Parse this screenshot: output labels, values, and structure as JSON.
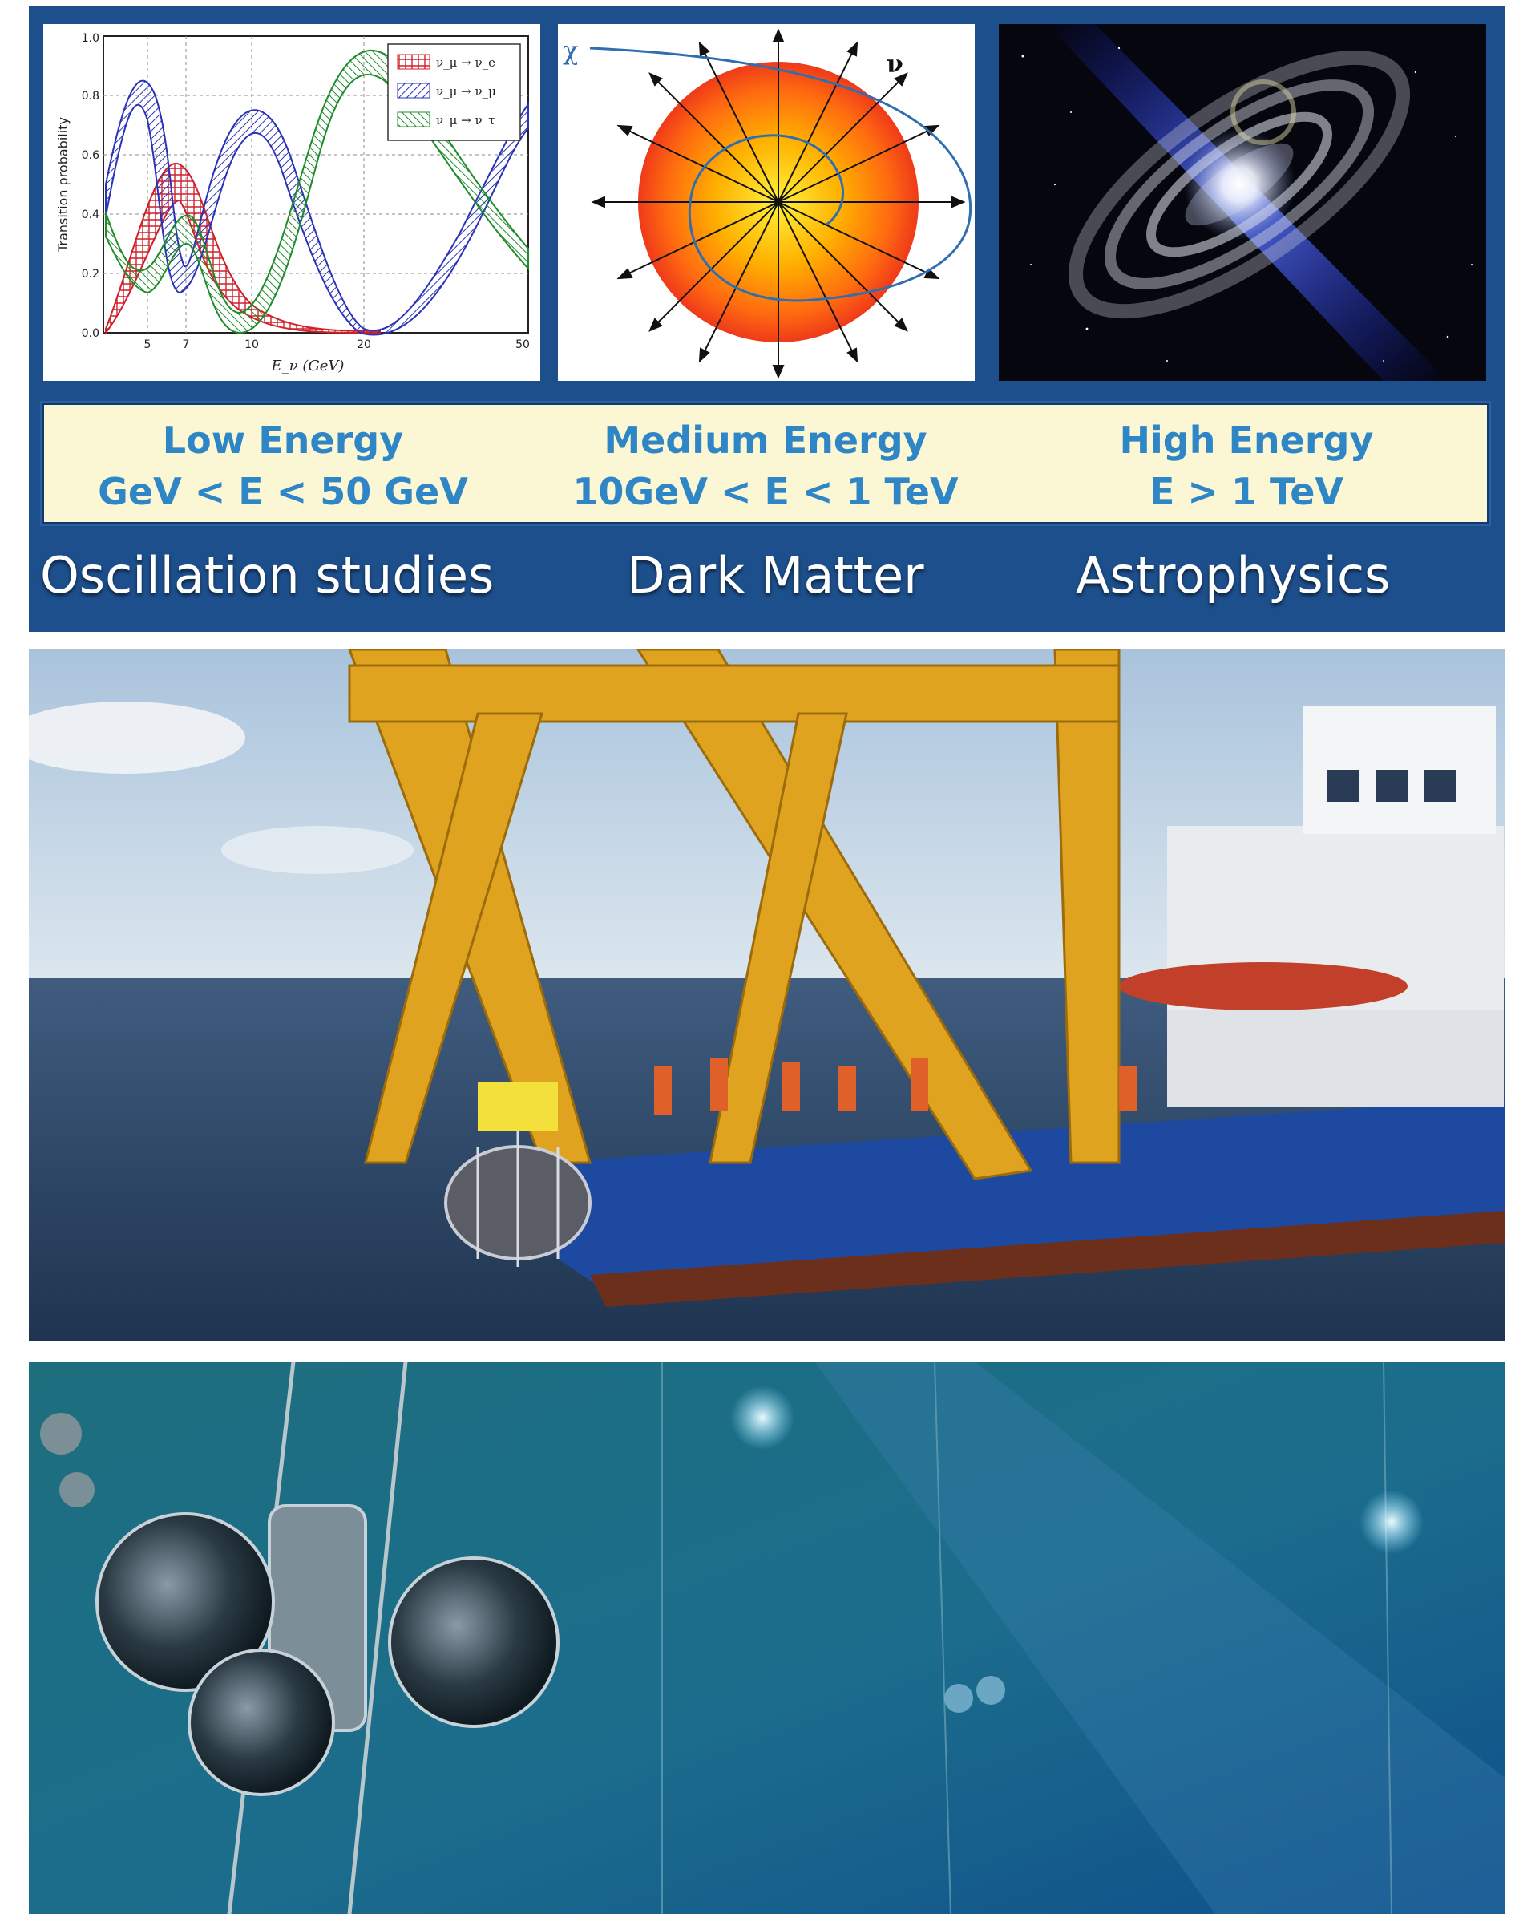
{
  "categories": [
    {
      "title": "Low Energy",
      "range": "GeV < E < 50 GeV",
      "topic": "Oscillation studies"
    },
    {
      "title": "Medium Energy",
      "range": "10GeV < E < 1 TeV",
      "topic": "Dark Matter"
    },
    {
      "title": "High Energy",
      "range": "E > 1 TeV",
      "topic": "Astrophysics"
    }
  ],
  "oscillation_plot": {
    "ylabel": "Transition probability",
    "xlabel": "E_ν (GeV)",
    "y_ticks": [
      "0.0",
      "0.2",
      "0.4",
      "0.6",
      "0.8",
      "1.0"
    ],
    "x_ticks": [
      "5",
      "7",
      "10",
      "20",
      "50"
    ],
    "legend": [
      "ν_μ → ν_e",
      "ν_μ → ν_μ",
      "ν_μ → ν_τ"
    ],
    "legend_colors": [
      "#d0202a",
      "#2a32b8",
      "#1e8c2a"
    ]
  },
  "dark_matter_diagram": {
    "chi_label": "χ",
    "nu_label": "ν"
  },
  "colors": {
    "panel_blue": "#1d4f8c",
    "energy_box_bg": "#fbf7d4",
    "energy_text": "#2f86c6"
  }
}
